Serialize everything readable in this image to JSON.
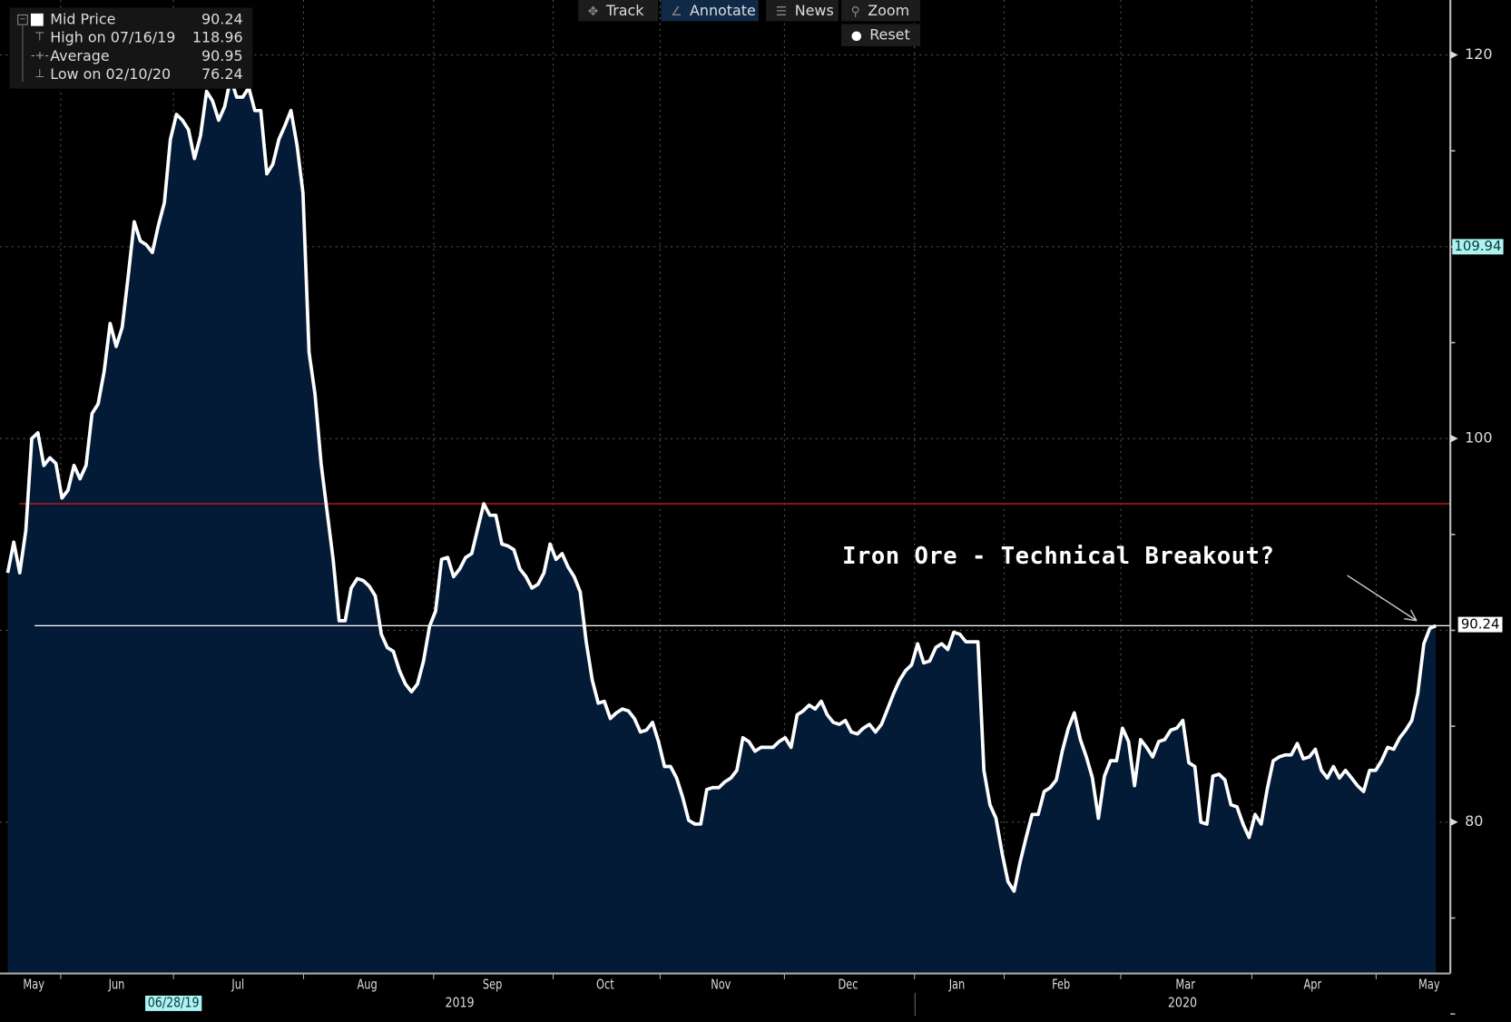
{
  "toolbar": {
    "track": "Track",
    "annotate": "Annotate",
    "news": "News",
    "zoom": "Zoom",
    "reset": "Reset"
  },
  "legend": {
    "mid_price_label": "Mid Price",
    "mid_price_value": "90.24",
    "high_label": "High on 07/16/19",
    "high_value": "118.96",
    "average_label": "Average",
    "average_value": "90.95",
    "low_label": "Low on 02/10/20",
    "low_value": "76.24"
  },
  "colors": {
    "line": "#ffffff",
    "fill": "#041b38",
    "ref_line": "#c0141c",
    "current_line": "#ffffff",
    "highlight": "#aef2f2"
  },
  "chart_data": {
    "type": "area",
    "title": "Iron Ore - Technical Breakout?",
    "annotation": "Iron Ore - Technical Breakout?",
    "series": [
      {
        "name": "Mid Price",
        "values": [
          93.0,
          94.6,
          93.0,
          95.2,
          100.0,
          100.3,
          98.6,
          99.0,
          98.7,
          96.9,
          97.3,
          98.6,
          97.9,
          98.6,
          101.3,
          101.8,
          103.5,
          106.0,
          104.8,
          105.8,
          108.5,
          111.3,
          110.3,
          110.1,
          109.7,
          111.1,
          112.3,
          115.6,
          116.9,
          116.6,
          116.1,
          114.6,
          115.8,
          118.1,
          117.6,
          116.6,
          117.3,
          118.8,
          117.8,
          117.8,
          118.3,
          117.1,
          117.1,
          113.8,
          114.3,
          115.6,
          116.3,
          117.1,
          115.3,
          112.8,
          104.5,
          102.3,
          98.7,
          96.2,
          93.7,
          90.5,
          90.5,
          92.2,
          92.7,
          92.6,
          92.3,
          91.8,
          89.8,
          89.1,
          88.9,
          87.9,
          87.2,
          86.8,
          87.2,
          88.4,
          90.2,
          91.0,
          93.7,
          93.8,
          92.8,
          93.2,
          93.8,
          94.0,
          95.3,
          96.6,
          96.0,
          96.0,
          94.5,
          94.4,
          94.2,
          93.2,
          92.8,
          92.2,
          92.4,
          93.0,
          94.5,
          93.7,
          94.0,
          93.3,
          92.8,
          92.0,
          89.4,
          87.4,
          86.2,
          86.3,
          85.4,
          85.7,
          85.9,
          85.8,
          85.4,
          84.7,
          84.8,
          85.2,
          84.2,
          82.9,
          82.9,
          82.3,
          81.3,
          80.1,
          79.9,
          79.9,
          81.7,
          81.8,
          81.8,
          82.1,
          82.3,
          82.7,
          84.4,
          84.2,
          83.7,
          83.9,
          83.9,
          83.9,
          84.2,
          84.4,
          83.9,
          85.6,
          85.8,
          86.1,
          85.9,
          86.3,
          85.6,
          85.2,
          85.1,
          85.3,
          84.7,
          84.6,
          84.9,
          85.1,
          84.7,
          85.1,
          85.9,
          86.7,
          87.4,
          87.9,
          88.2,
          89.3,
          88.3,
          88.4,
          89.1,
          89.3,
          89.0,
          89.9,
          89.8,
          89.4,
          89.4,
          89.4,
          82.7,
          80.9,
          80.2,
          78.4,
          76.9,
          76.4,
          77.9,
          79.2,
          80.4,
          80.4,
          81.6,
          81.8,
          82.2,
          83.7,
          84.9,
          85.7,
          84.3,
          83.4,
          82.3,
          80.2,
          82.4,
          83.2,
          83.2,
          84.9,
          84.2,
          81.9,
          84.3,
          83.9,
          83.4,
          84.2,
          84.3,
          84.8,
          84.9,
          85.3,
          83.1,
          82.9,
          80.0,
          79.9,
          82.4,
          82.5,
          82.2,
          80.9,
          80.8,
          79.9,
          79.2,
          80.4,
          79.9,
          81.7,
          83.2,
          83.4,
          83.5,
          83.5,
          84.1,
          83.3,
          83.4,
          83.8,
          82.7,
          82.3,
          82.9,
          82.3,
          82.7,
          82.3,
          81.9,
          81.6,
          82.7,
          82.7,
          83.2,
          83.9,
          83.8,
          84.4,
          84.8,
          85.3,
          86.7,
          89.3,
          90.1,
          90.24
        ]
      }
    ],
    "x_start": "May 2019",
    "x_end": "May 2020",
    "x_month_labels": [
      "May",
      "Jun",
      "Jul",
      "Aug",
      "Sep",
      "Oct",
      "Nov",
      "Dec",
      "Jan",
      "Feb",
      "Mar",
      "Apr",
      "May"
    ],
    "x_year_labels": [
      "2019",
      "2020"
    ],
    "x_highlight_label": "06/28/19",
    "y_ticks": [
      "120",
      "100",
      "80"
    ],
    "ylim": [
      66,
      123
    ],
    "reference_lines": [
      {
        "name": "resistance",
        "value": 96.6
      },
      {
        "name": "current",
        "value": 90.24,
        "label": "90.24"
      }
    ],
    "y_highlight_label": "109.94",
    "y_highlight_value": 109.94,
    "last_value_label": "90.24",
    "grid": true,
    "legend_position": "top-left"
  }
}
